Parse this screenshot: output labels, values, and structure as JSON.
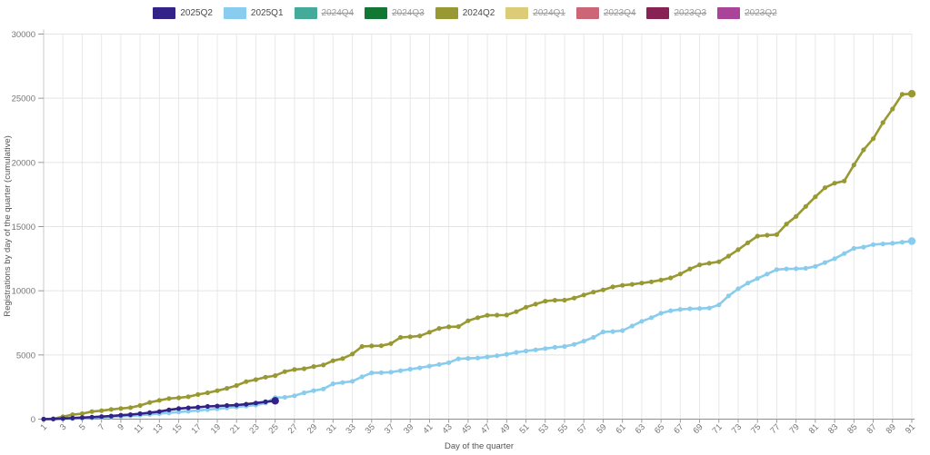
{
  "chart_data": {
    "type": "line",
    "title": "",
    "xlabel": "Day of the quarter",
    "ylabel": "Registrations by day of the quarter (cumulative)",
    "x_start": 1,
    "x_end": 91,
    "ylim": [
      0,
      30000
    ],
    "yticks": [
      0,
      5000,
      10000,
      15000,
      20000,
      25000,
      30000
    ],
    "xticks": [
      1,
      3,
      5,
      7,
      9,
      11,
      13,
      15,
      17,
      19,
      21,
      23,
      25,
      27,
      29,
      31,
      33,
      35,
      37,
      39,
      41,
      43,
      45,
      47,
      49,
      51,
      53,
      55,
      57,
      59,
      61,
      63,
      65,
      67,
      69,
      71,
      73,
      75,
      77,
      79,
      81,
      83,
      85,
      87,
      89,
      91
    ],
    "grid": true,
    "legend_position": "top",
    "series": [
      {
        "name": "2025Q2",
        "color": "#332288",
        "visible": true,
        "values": [
          0,
          15,
          50,
          85,
          120,
          155,
          195,
          240,
          305,
          350,
          425,
          500,
          590,
          720,
          820,
          880,
          930,
          990,
          1020,
          1060,
          1100,
          1160,
          1250,
          1350,
          1430
        ]
      },
      {
        "name": "2025Q1",
        "color": "#88CCEE",
        "visible": true,
        "values": [
          0,
          10,
          25,
          45,
          70,
          95,
          130,
          170,
          215,
          260,
          305,
          365,
          425,
          490,
          550,
          615,
          680,
          745,
          810,
          875,
          945,
          1020,
          1100,
          1250,
          1680,
          1700,
          1820,
          2050,
          2220,
          2350,
          2750,
          2850,
          2950,
          3300,
          3600,
          3620,
          3660,
          3780,
          3890,
          4000,
          4130,
          4260,
          4400,
          4700,
          4730,
          4760,
          4850,
          4940,
          5050,
          5200,
          5310,
          5400,
          5500,
          5600,
          5660,
          5820,
          6080,
          6370,
          6790,
          6820,
          6900,
          7250,
          7620,
          7900,
          8250,
          8450,
          8550,
          8600,
          8620,
          8650,
          8900,
          9600,
          10150,
          10600,
          10950,
          11300,
          11650,
          11700,
          11720,
          11750,
          11900,
          12200,
          12500,
          12900,
          13300,
          13400,
          13600,
          13650,
          13700,
          13780,
          13870
        ]
      },
      {
        "name": "2024Q4",
        "color": "#44AA99",
        "visible": false,
        "values": []
      },
      {
        "name": "2024Q3",
        "color": "#117733",
        "visible": false,
        "values": []
      },
      {
        "name": "2024Q2",
        "color": "#999933",
        "visible": true,
        "values": [
          0,
          30,
          190,
          350,
          425,
          590,
          660,
          755,
          825,
          900,
          1060,
          1300,
          1465,
          1605,
          1660,
          1750,
          1915,
          2055,
          2215,
          2400,
          2620,
          2920,
          3080,
          3270,
          3390,
          3700,
          3860,
          3930,
          4100,
          4220,
          4550,
          4720,
          5070,
          5660,
          5700,
          5720,
          5890,
          6365,
          6415,
          6480,
          6770,
          7070,
          7190,
          7210,
          7660,
          7900,
          8090,
          8100,
          8110,
          8370,
          8720,
          8960,
          9190,
          9260,
          9270,
          9430,
          9670,
          9900,
          10070,
          10300,
          10420,
          10500,
          10600,
          10700,
          10840,
          11000,
          11310,
          11700,
          12020,
          12150,
          12260,
          12700,
          13200,
          13740,
          14260,
          14330,
          14380,
          15200,
          15790,
          16570,
          17320,
          18030,
          18380,
          18550,
          19800,
          20980,
          21850,
          23100,
          24160,
          25300,
          25350
        ]
      },
      {
        "name": "2024Q1",
        "color": "#DDCC77",
        "visible": false,
        "values": []
      },
      {
        "name": "2023Q4",
        "color": "#CC6677",
        "visible": false,
        "values": []
      },
      {
        "name": "2023Q3",
        "color": "#882255",
        "visible": false,
        "values": []
      },
      {
        "name": "2023Q2",
        "color": "#AA4499",
        "visible": false,
        "values": []
      }
    ]
  }
}
